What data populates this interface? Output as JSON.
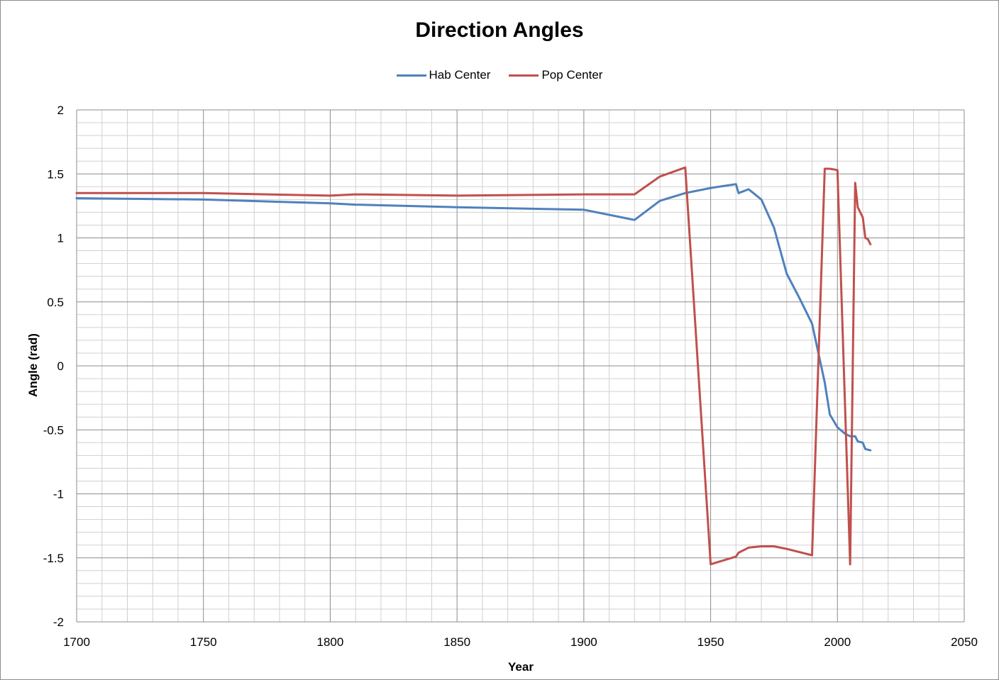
{
  "chart_data": {
    "type": "line",
    "title": "Direction Angles",
    "xlabel": "Year",
    "ylabel": "Angle (rad)",
    "xlim": [
      1700,
      2050
    ],
    "ylim": [
      -2,
      2
    ],
    "x_ticks": [
      "1700",
      "1750",
      "1800",
      "1850",
      "1900",
      "1950",
      "2000",
      "2050"
    ],
    "y_ticks": [
      "2",
      "1.5",
      "1",
      "0.5",
      "0",
      "-0.5",
      "-1",
      "-1.5",
      "-2"
    ],
    "grid": true,
    "legend_position": "top",
    "series": [
      {
        "name": "Hab Center",
        "color": "#4f81bd",
        "points": [
          [
            1700,
            1.31
          ],
          [
            1750,
            1.3
          ],
          [
            1800,
            1.27
          ],
          [
            1810,
            1.26
          ],
          [
            1850,
            1.24
          ],
          [
            1900,
            1.22
          ],
          [
            1920,
            1.14
          ],
          [
            1930,
            1.29
          ],
          [
            1940,
            1.35
          ],
          [
            1950,
            1.39
          ],
          [
            1960,
            1.42
          ],
          [
            1961,
            1.35
          ],
          [
            1965,
            1.38
          ],
          [
            1970,
            1.3
          ],
          [
            1975,
            1.08
          ],
          [
            1980,
            0.72
          ],
          [
            1985,
            0.53
          ],
          [
            1990,
            0.33
          ],
          [
            1995,
            -0.13
          ],
          [
            1997,
            -0.38
          ],
          [
            2000,
            -0.48
          ],
          [
            2003,
            -0.53
          ],
          [
            2005,
            -0.55
          ],
          [
            2007,
            -0.55
          ],
          [
            2008,
            -0.59
          ],
          [
            2010,
            -0.6
          ],
          [
            2011,
            -0.65
          ],
          [
            2013,
            -0.66
          ]
        ]
      },
      {
        "name": "Pop Center",
        "color": "#c0504d",
        "points": [
          [
            1700,
            1.35
          ],
          [
            1750,
            1.35
          ],
          [
            1800,
            1.33
          ],
          [
            1810,
            1.34
          ],
          [
            1850,
            1.33
          ],
          [
            1900,
            1.34
          ],
          [
            1920,
            1.34
          ],
          [
            1930,
            1.48
          ],
          [
            1940,
            1.55
          ],
          [
            1950,
            -1.55
          ],
          [
            1960,
            -1.49
          ],
          [
            1961,
            -1.46
          ],
          [
            1965,
            -1.42
          ],
          [
            1970,
            -1.41
          ],
          [
            1975,
            -1.41
          ],
          [
            1980,
            -1.43
          ],
          [
            1990,
            -1.48
          ],
          [
            1995,
            1.54
          ],
          [
            1997,
            1.54
          ],
          [
            2000,
            1.53
          ],
          [
            2005,
            -1.55
          ],
          [
            2007,
            1.43
          ],
          [
            2008,
            1.24
          ],
          [
            2010,
            1.16
          ],
          [
            2011,
            1.0
          ],
          [
            2012,
            0.99
          ],
          [
            2013,
            0.95
          ]
        ]
      }
    ]
  }
}
